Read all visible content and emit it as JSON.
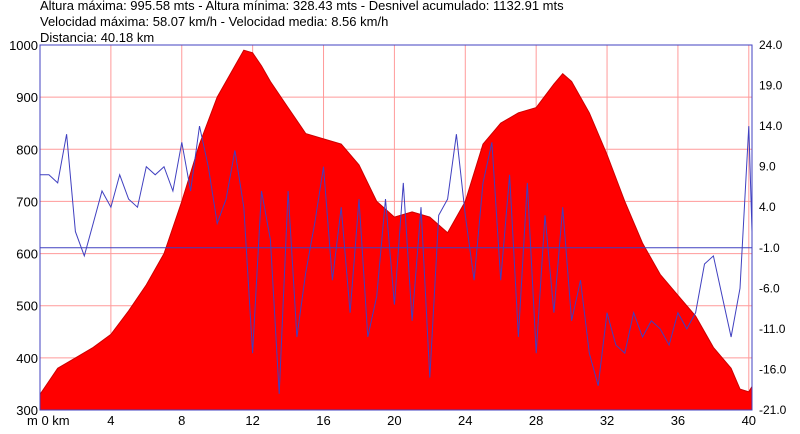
{
  "header": {
    "line1": "Altura máxima: 995.58 mts - Altura mínima: 328.43 mts - Desnivel acumulado: 1132.91 mts",
    "line2": "Velocidad máxima: 58.07 km/h - Velocidad media: 8.56 km/h",
    "line3": "Distancia: 40.18 km"
  },
  "chart_data": {
    "type": "area",
    "xlabel": "km",
    "x_ticks": [
      "m 0 km",
      "4",
      "8",
      "12",
      "16",
      "20",
      "24",
      "28",
      "32",
      "36",
      "40"
    ],
    "x_tick_values": [
      0,
      4,
      8,
      12,
      16,
      20,
      24,
      28,
      32,
      36,
      40
    ],
    "xlim": [
      0,
      40.18
    ],
    "y_left_ticks": [
      300,
      400,
      500,
      600,
      700,
      800,
      900,
      1000
    ],
    "ylim_left": [
      300,
      1000
    ],
    "y_right_ticks": [
      "-21.0",
      "-16.0",
      "-11.0",
      "-6.0",
      "-1.0",
      "4.0",
      "9.0",
      "14.0",
      "19.0",
      "24.0"
    ],
    "y_right_values": [
      -21,
      -16,
      -11,
      -6,
      -1,
      4,
      9,
      14,
      19,
      24
    ],
    "ylim_right": [
      -21,
      24
    ],
    "reference_line_right": -1,
    "grid": true,
    "colors": {
      "altitude_fill": "#ff0000",
      "speed_line": "#4040c0",
      "grid": "#ff9a9a",
      "frame": "#4040c0"
    },
    "series": [
      {
        "axis": "left",
        "x": [
          0,
          1,
          2,
          3,
          4,
          5,
          6,
          7,
          8,
          9,
          10,
          11,
          11.5,
          12,
          12.5,
          13,
          14,
          15,
          16,
          17,
          18,
          19,
          20,
          21,
          22,
          23,
          24,
          25,
          26,
          27,
          28,
          29,
          29.5,
          30,
          31,
          32,
          33,
          34,
          35,
          36,
          37,
          38,
          39,
          39.5,
          40,
          40.18
        ],
        "y": [
          330,
          380,
          400,
          420,
          445,
          490,
          540,
          600,
          700,
          810,
          900,
          960,
          990,
          985,
          960,
          930,
          880,
          830,
          820,
          810,
          770,
          700,
          670,
          680,
          670,
          640,
          700,
          810,
          850,
          870,
          880,
          925,
          945,
          930,
          870,
          790,
          700,
          620,
          560,
          520,
          480,
          420,
          380,
          340,
          335,
          345
        ]
      },
      {
        "axis": "right",
        "x": [
          0,
          0.5,
          1,
          1.5,
          2,
          2.5,
          3,
          3.5,
          4,
          4.5,
          5,
          5.5,
          6,
          6.5,
          7,
          7.5,
          8,
          8.5,
          9,
          9.5,
          10,
          10.5,
          11,
          11.5,
          12,
          12.5,
          13,
          13.5,
          14,
          14.5,
          15,
          15.5,
          16,
          16.5,
          17,
          17.5,
          18,
          18.5,
          19,
          19.5,
          20,
          20.5,
          21,
          21.5,
          22,
          22.5,
          23,
          23.5,
          24,
          24.5,
          25,
          25.5,
          26,
          26.5,
          27,
          27.5,
          28,
          28.5,
          29,
          29.5,
          30,
          30.5,
          31,
          31.5,
          32,
          32.5,
          33,
          33.5,
          34,
          34.5,
          35,
          35.5,
          36,
          36.5,
          37,
          37.5,
          38,
          38.5,
          39,
          39.5,
          40,
          40.18
        ],
        "y": [
          8,
          8,
          7,
          13,
          1,
          -2,
          2,
          6,
          4,
          8,
          5,
          4,
          9,
          8,
          9,
          6,
          12,
          6,
          14,
          9,
          2,
          5,
          11,
          4,
          -14,
          6,
          0,
          -19,
          6,
          -12,
          -4,
          2,
          9,
          -5,
          4,
          -9,
          5,
          -12,
          -7,
          5,
          -8,
          7,
          -10,
          4,
          -17,
          3,
          5,
          13,
          3,
          -5,
          7,
          12,
          -5,
          8,
          -12,
          7,
          -14,
          3,
          -9,
          4,
          -10,
          -5,
          -14,
          -18,
          -9,
          -13,
          -14,
          -9,
          -12,
          -10,
          -11,
          -13,
          -9,
          -11,
          -9,
          -3,
          -2,
          -7,
          -12,
          -6,
          14,
          1
        ]
      }
    ]
  }
}
